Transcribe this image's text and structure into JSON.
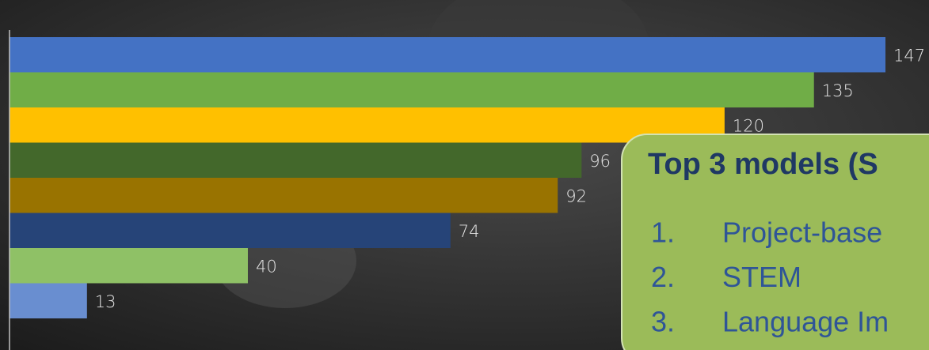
{
  "chart_data": {
    "type": "bar",
    "orientation": "horizontal",
    "values": [
      147,
      135,
      120,
      96,
      92,
      74,
      40,
      13
    ],
    "colors": [
      "#4472c4",
      "#70ad47",
      "#ffc000",
      "#43682b",
      "#997300",
      "#264478",
      "#8fc166",
      "#698ed0"
    ]
  },
  "callout": {
    "title": "Top 3 models (S",
    "items": [
      {
        "number": "1.",
        "text": "Project-base"
      },
      {
        "number": "2.",
        "text": "STEM"
      },
      {
        "number": "3.",
        "text": "Language Im"
      }
    ]
  }
}
